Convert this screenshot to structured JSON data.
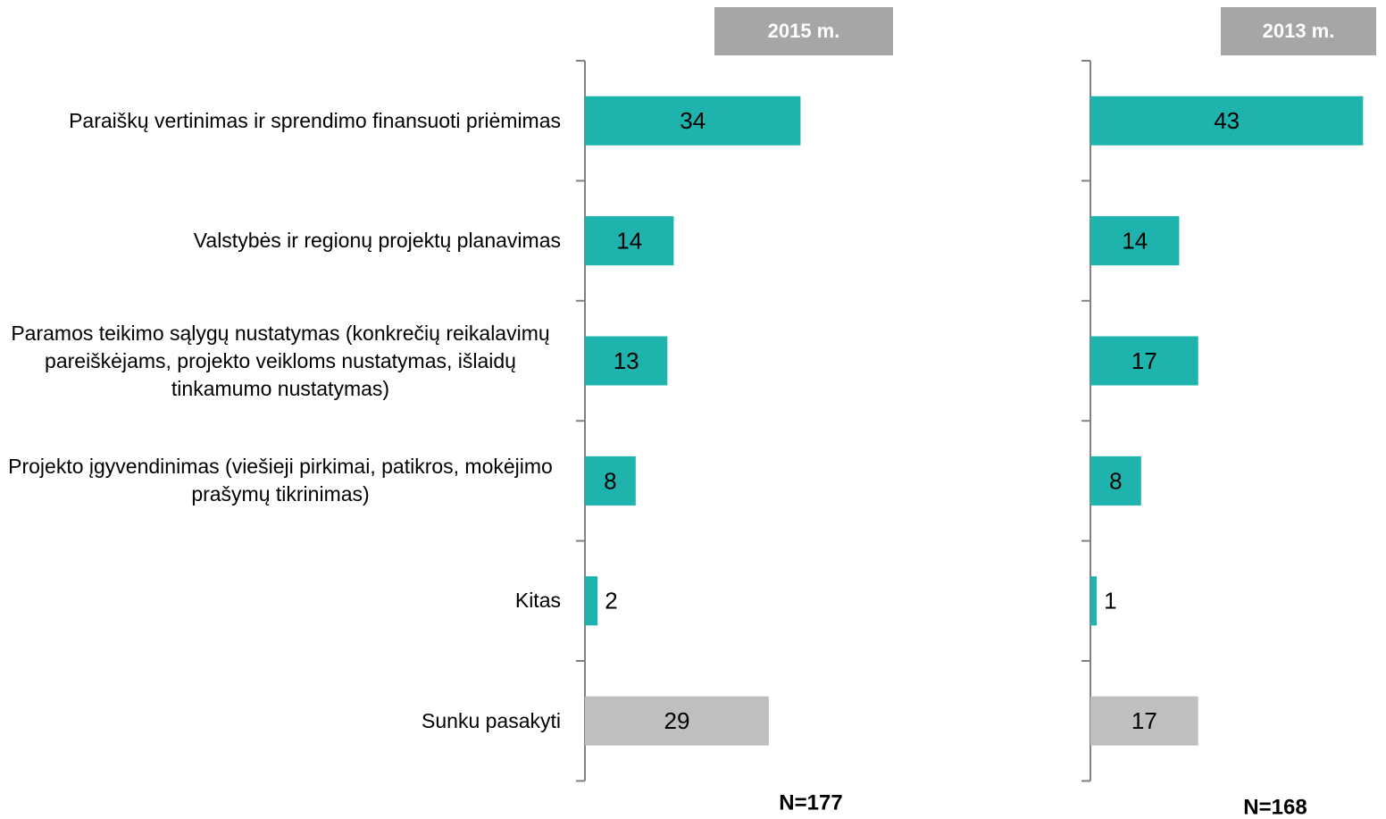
{
  "chart_data": {
    "type": "bar",
    "categories": [
      "Paraiškų vertinimas ir sprendimo finansuoti priėmimas",
      "Valstybės ir regionų projektų planavimas",
      "Paramos teikimo sąlygų nustatymas (konkrečių reikalavimų pareiškėjams, projekto veikloms nustatymas, išlaidų tinkamumo nustatymas)",
      "Projekto įgyvendinimas (viešieji pirkimai, patikros, mokėjimo prašymų tikrinimas)",
      "Kitas",
      "Sunku pasakyti"
    ],
    "series": [
      {
        "name": "2015 m.",
        "sample": "N=177",
        "values": [
          34,
          14,
          13,
          8,
          2,
          29
        ],
        "colors": [
          "#1fb3ad",
          "#1fb3ad",
          "#1fb3ad",
          "#1fb3ad",
          "#1fb3ad",
          "#bfbfbf"
        ]
      },
      {
        "name": "2013 m.",
        "sample": "N=168",
        "values": [
          43,
          14,
          17,
          8,
          1,
          17
        ],
        "colors": [
          "#1fb3ad",
          "#1fb3ad",
          "#1fb3ad",
          "#1fb3ad",
          "#1fb3ad",
          "#bfbfbf"
        ]
      }
    ],
    "header_color": "#a6a6a6"
  }
}
